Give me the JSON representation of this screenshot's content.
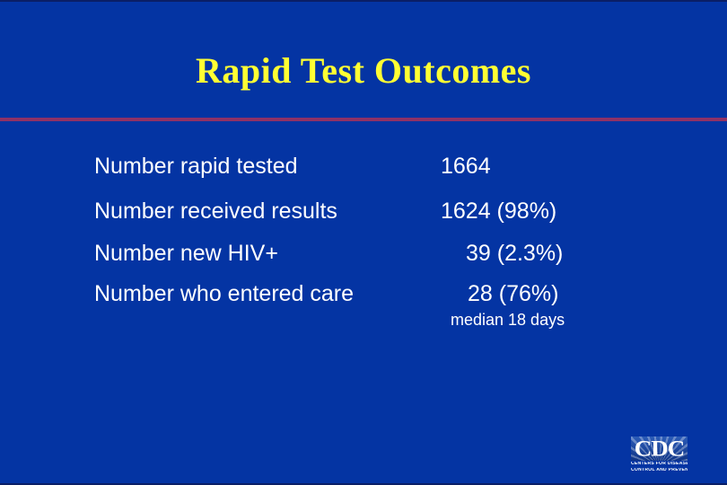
{
  "slide": {
    "title": "Rapid Test Outcomes",
    "colors": {
      "background": "#0434A3",
      "edge_line": "#0A1E66",
      "title": "#FFFF33",
      "divider": "#8F3166",
      "body_text": "#FFFFFF"
    },
    "table": {
      "rows": [
        {
          "label": "Number rapid tested",
          "value": "1664"
        },
        {
          "label": "Number received results",
          "value": "1624 (98%)"
        },
        {
          "label": "Number new HIV+",
          "value": "39 (2.3%)"
        },
        {
          "label": "Number who entered care",
          "value": "28 (76%)"
        }
      ],
      "note": "median 18 days"
    },
    "logo": {
      "acronym": "CDC",
      "caption_line1": "CENTERS FOR DISEASE",
      "caption_line2": "CONTROL AND PREVENTION"
    }
  }
}
